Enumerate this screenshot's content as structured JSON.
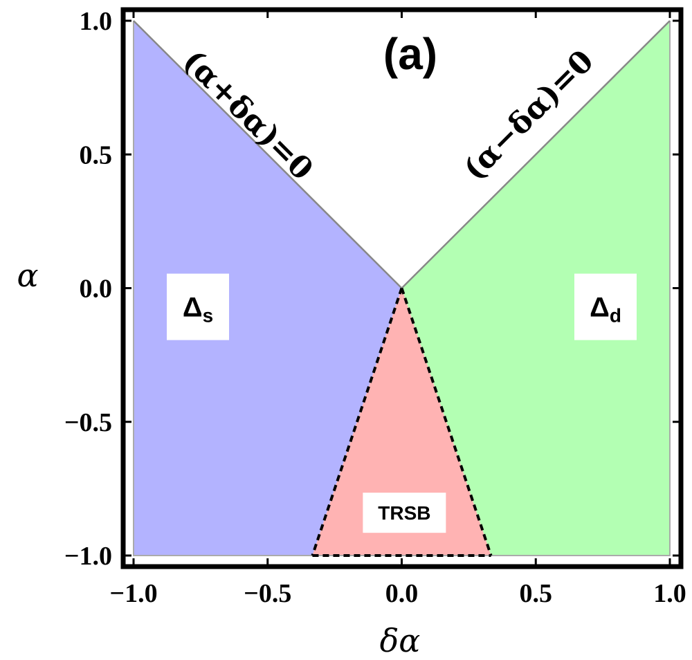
{
  "chart_data": {
    "type": "area",
    "panel_label": "(a)",
    "xlabel": "δα",
    "ylabel": "α",
    "xlim": [
      -1.0,
      1.0
    ],
    "ylim": [
      -1.0,
      1.0
    ],
    "xticks": [
      "−1.0",
      "−0.5",
      "0.0",
      "0.5",
      "1.0"
    ],
    "yticks": [
      "−1.0",
      "−0.5",
      "0.0",
      "0.5",
      "1.0"
    ],
    "xtick_values": [
      -1.0,
      -0.5,
      0.0,
      0.5,
      1.0
    ],
    "ytick_values": [
      -1.0,
      -0.5,
      0.0,
      0.5,
      1.0
    ],
    "grid": false,
    "regions": [
      {
        "name": "Δs",
        "label_main": "Δ",
        "label_sub": "s",
        "color": "#b3b3ff",
        "polygon": [
          [
            -1.0,
            1.0
          ],
          [
            0.0,
            0.0
          ],
          [
            -0.333,
            -1.0
          ],
          [
            -1.0,
            -1.0
          ]
        ],
        "label_at": [
          -0.76,
          -0.07
        ]
      },
      {
        "name": "Δd",
        "label_main": "Δ",
        "label_sub": "d",
        "color": "#b3ffb3",
        "polygon": [
          [
            1.0,
            1.0
          ],
          [
            0.0,
            0.0
          ],
          [
            0.333,
            -1.0
          ],
          [
            1.0,
            -1.0
          ]
        ],
        "label_at": [
          0.76,
          -0.07
        ]
      },
      {
        "name": "TRSB",
        "label_main": "TRSB",
        "label_sub": "",
        "color": "#ffb3b3",
        "polygon": [
          [
            0.0,
            0.0
          ],
          [
            -0.333,
            -1.0
          ],
          [
            0.333,
            -1.0
          ]
        ],
        "label_at": [
          0.01,
          -0.84
        ]
      }
    ],
    "boundaries": [
      {
        "label": "(α+δα)=0",
        "points": [
          [
            -1.0,
            1.0
          ],
          [
            0.0,
            0.0
          ]
        ],
        "style": "solid",
        "color": "#888888",
        "label_at": [
          -0.6,
          0.62
        ],
        "angle": 45
      },
      {
        "label": "(α−δα)=0",
        "points": [
          [
            0.0,
            0.0
          ],
          [
            1.0,
            1.0
          ]
        ],
        "style": "solid",
        "color": "#888888",
        "label_at": [
          0.5,
          0.62
        ],
        "angle": -45
      },
      {
        "label": "",
        "points": [
          [
            0.0,
            0.0
          ],
          [
            -0.333,
            -1.0
          ]
        ],
        "style": "dashed",
        "color": "#000000"
      },
      {
        "label": "",
        "points": [
          [
            0.0,
            0.0
          ],
          [
            0.333,
            -1.0
          ]
        ],
        "style": "dashed",
        "color": "#000000"
      },
      {
        "label": "",
        "points": [
          [
            -0.333,
            -1.0
          ],
          [
            0.333,
            -1.0
          ]
        ],
        "style": "dashed",
        "color": "#000000"
      }
    ]
  }
}
